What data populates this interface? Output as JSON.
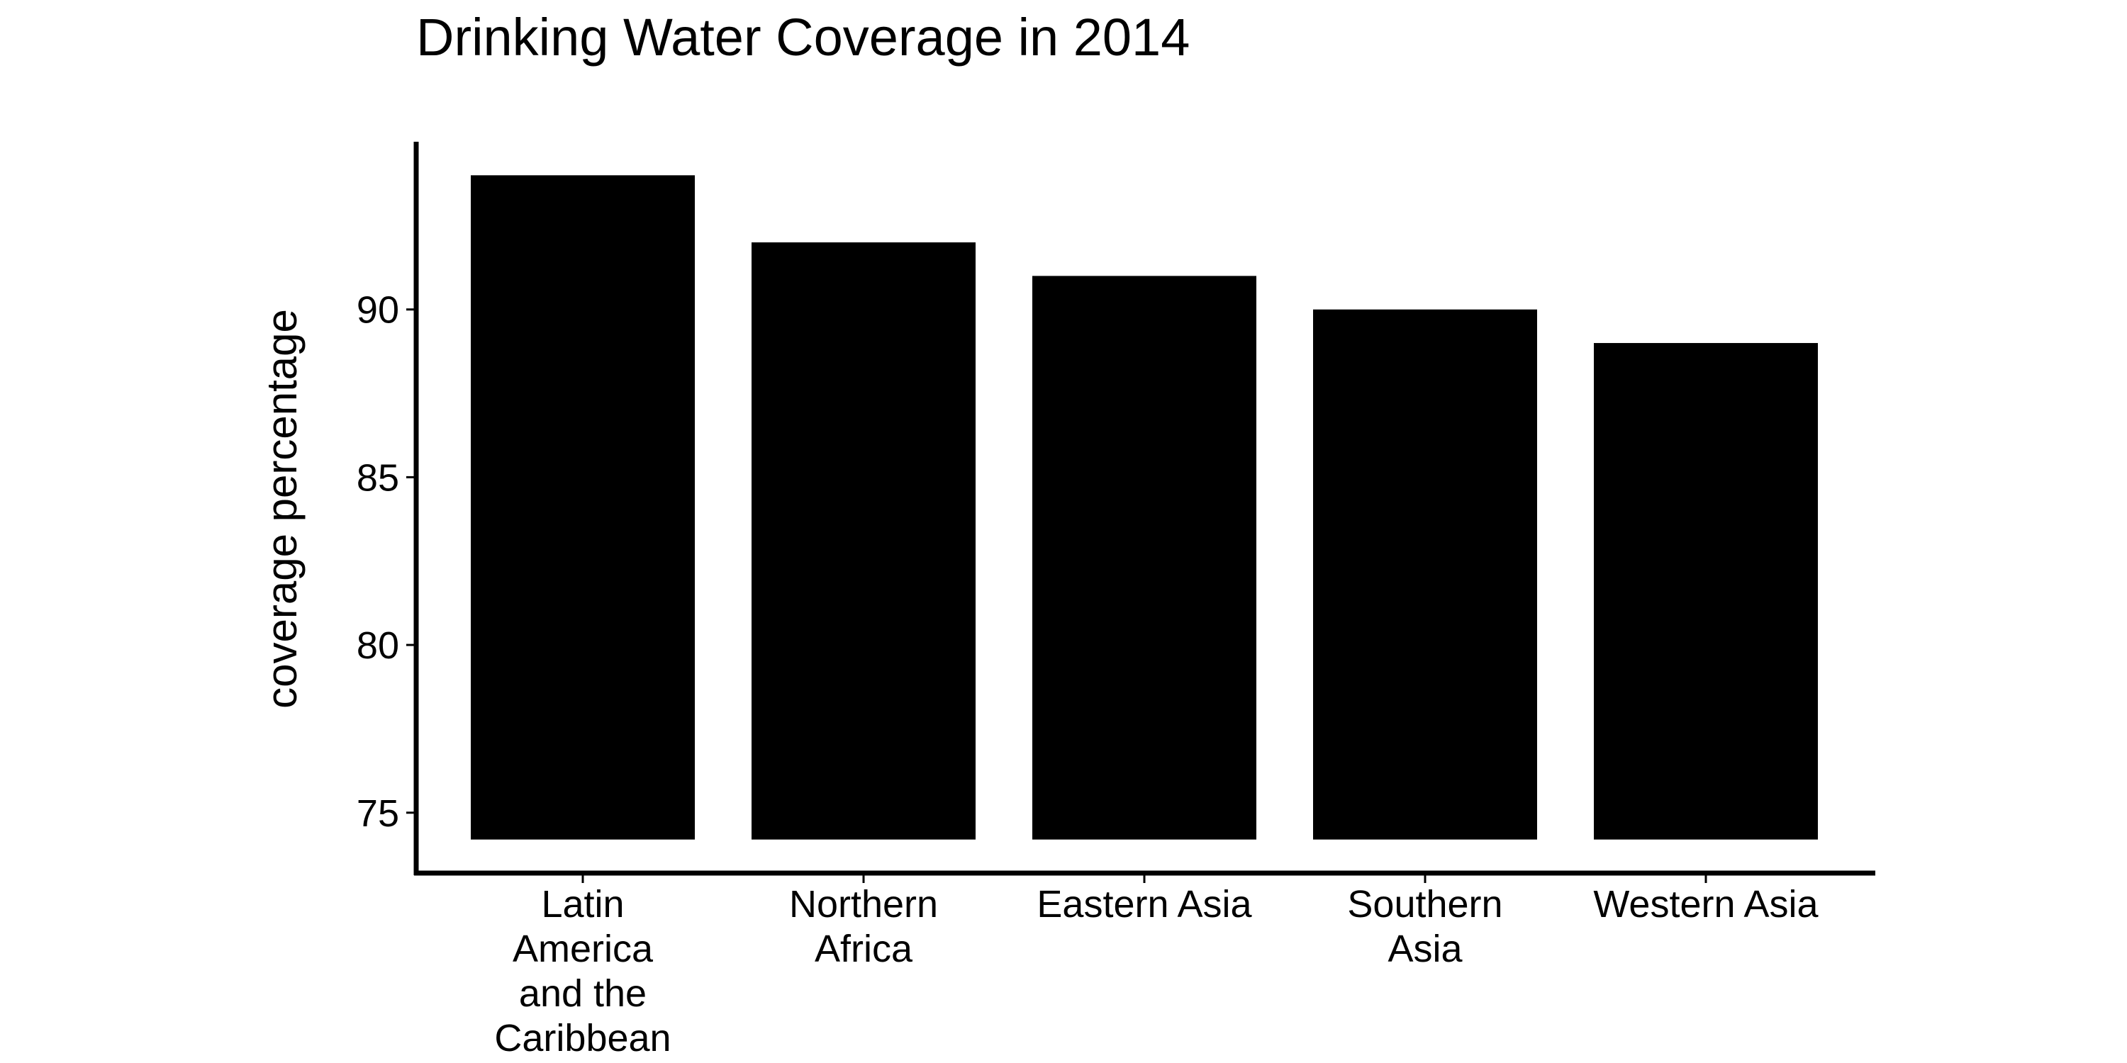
{
  "chart_data": {
    "type": "bar",
    "title": "Drinking Water Coverage in 2014",
    "xlabel": "",
    "ylabel": "coverage percentage",
    "categories": [
      [
        "Latin",
        "America",
        "and the",
        "Caribbean"
      ],
      [
        "Northern",
        "Africa"
      ],
      [
        "Eastern Asia"
      ],
      [
        "Southern",
        "Asia"
      ],
      [
        "Western Asia"
      ]
    ],
    "values": [
      94,
      92,
      91,
      90,
      89
    ],
    "ylim": [
      73.2,
      95
    ],
    "yticks": [
      75,
      80,
      85,
      90
    ],
    "bar_baseline": 74.2,
    "bar_color": "#000000",
    "grid": false,
    "legend": "none"
  }
}
